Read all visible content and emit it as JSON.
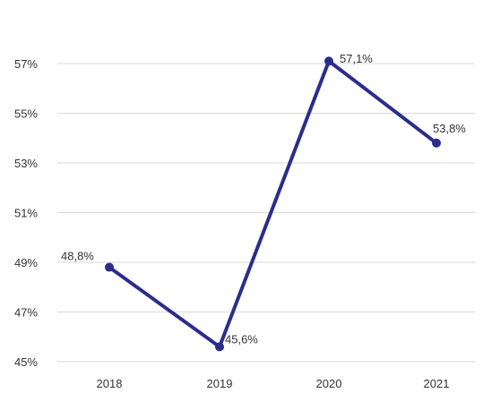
{
  "chart_data": {
    "type": "line",
    "categories": [
      "2018",
      "2019",
      "2020",
      "2021"
    ],
    "series": [
      {
        "values": [
          48.8,
          45.6,
          57.1,
          53.8
        ],
        "data_labels": [
          "48,8%",
          "45,6%",
          "57,1%",
          "53,8%"
        ],
        "color": "#2b2d8c"
      }
    ],
    "ylim": [
      45,
      57
    ],
    "y_ticks": [
      45,
      47,
      49,
      51,
      53,
      55,
      57
    ],
    "y_tick_labels": [
      "45%",
      "47%",
      "49%",
      "51%",
      "53%",
      "55%",
      "57%"
    ],
    "grid": true,
    "legend": "none",
    "title": "",
    "xlabel": "",
    "ylabel": ""
  }
}
